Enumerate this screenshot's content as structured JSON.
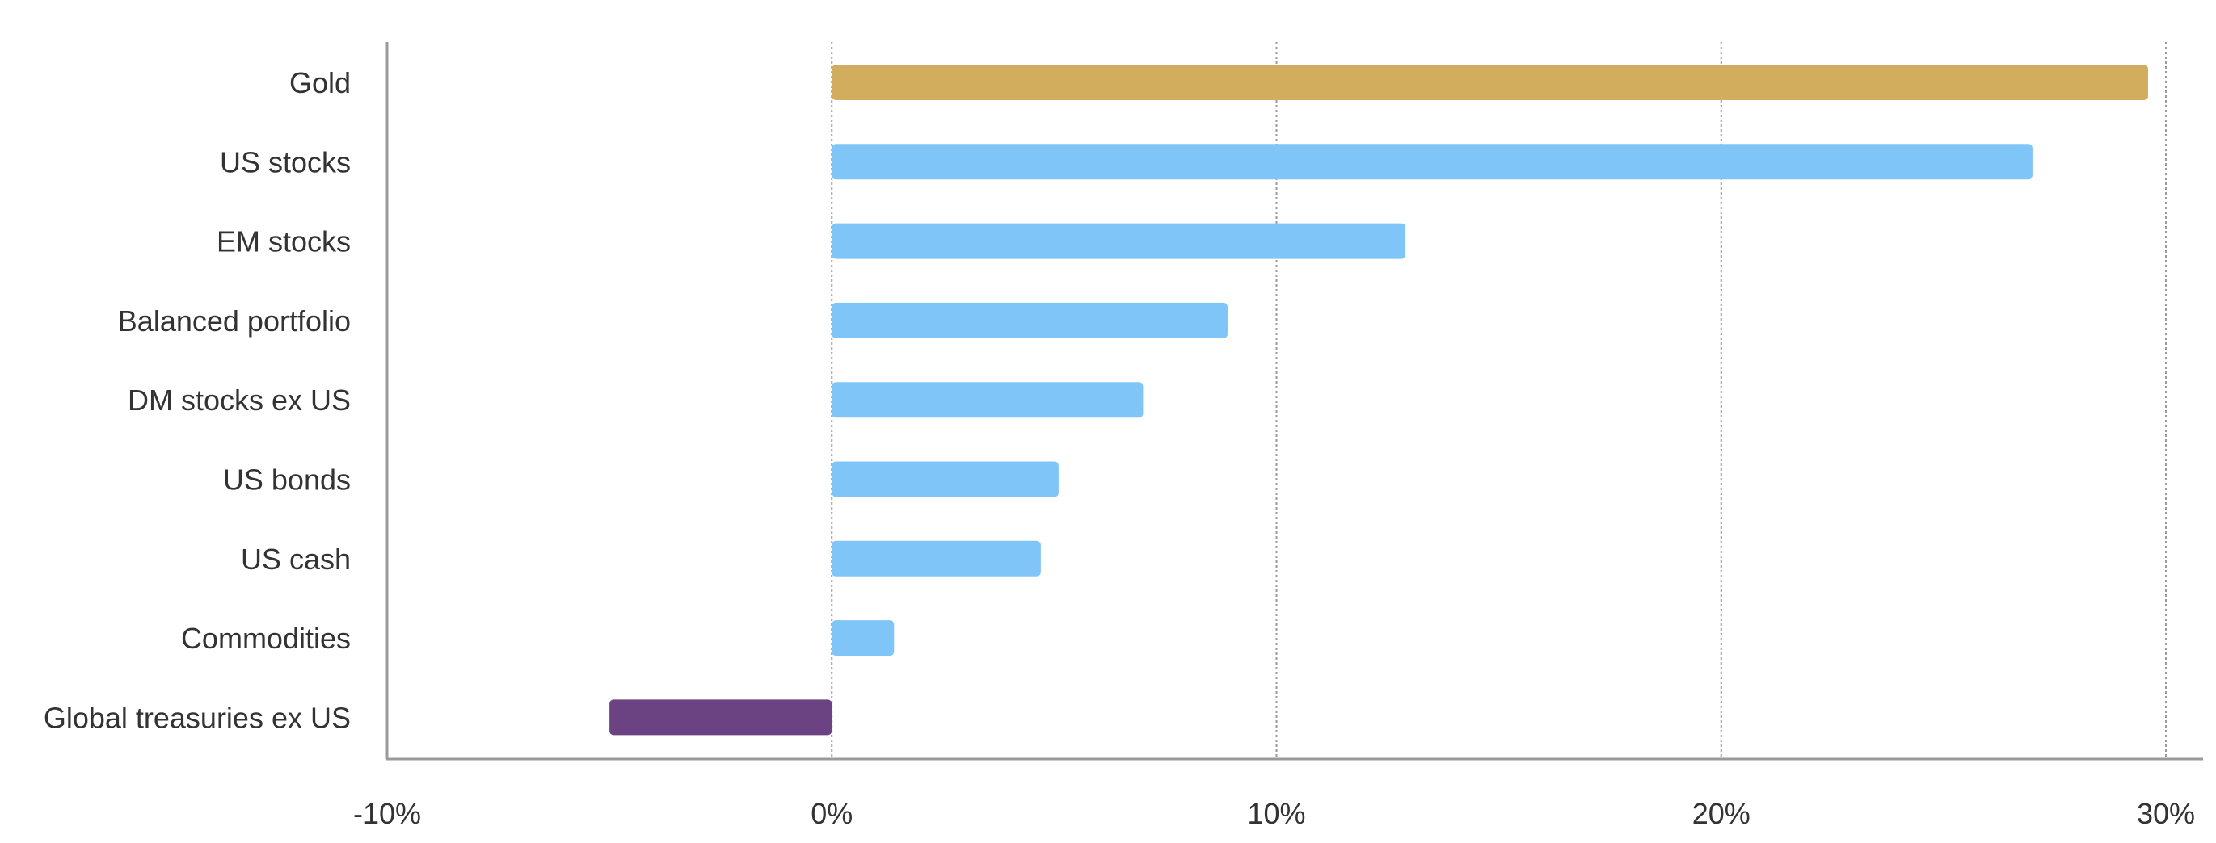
{
  "chart_data": {
    "type": "bar",
    "orientation": "horizontal",
    "title": "",
    "xlabel": "",
    "ylabel": "",
    "categories": [
      "Gold",
      "US stocks",
      "EM stocks",
      "Balanced portfolio",
      "DM stocks ex US",
      "US bonds",
      "US cash",
      "Commodities",
      "Global treasuries ex US"
    ],
    "values": [
      29.6,
      27.0,
      12.9,
      8.9,
      7.0,
      5.1,
      4.7,
      1.4,
      -5.0
    ],
    "value_unit": "%",
    "xlim": [
      -10,
      30
    ],
    "x_ticks": [
      -10,
      0,
      10,
      20,
      30
    ],
    "x_tick_labels": [
      "-10%",
      "0%",
      "10%",
      "20%",
      "30%"
    ],
    "grid": "vertical-dotted",
    "legend": "none",
    "colors": {
      "Gold": "#d2ad5d",
      "Global treasuries ex US": "#6b4382",
      "default": "#80c5f7",
      "grid": "#9a9a9a",
      "axis": "#9a9a9a",
      "text": "#333333"
    }
  }
}
